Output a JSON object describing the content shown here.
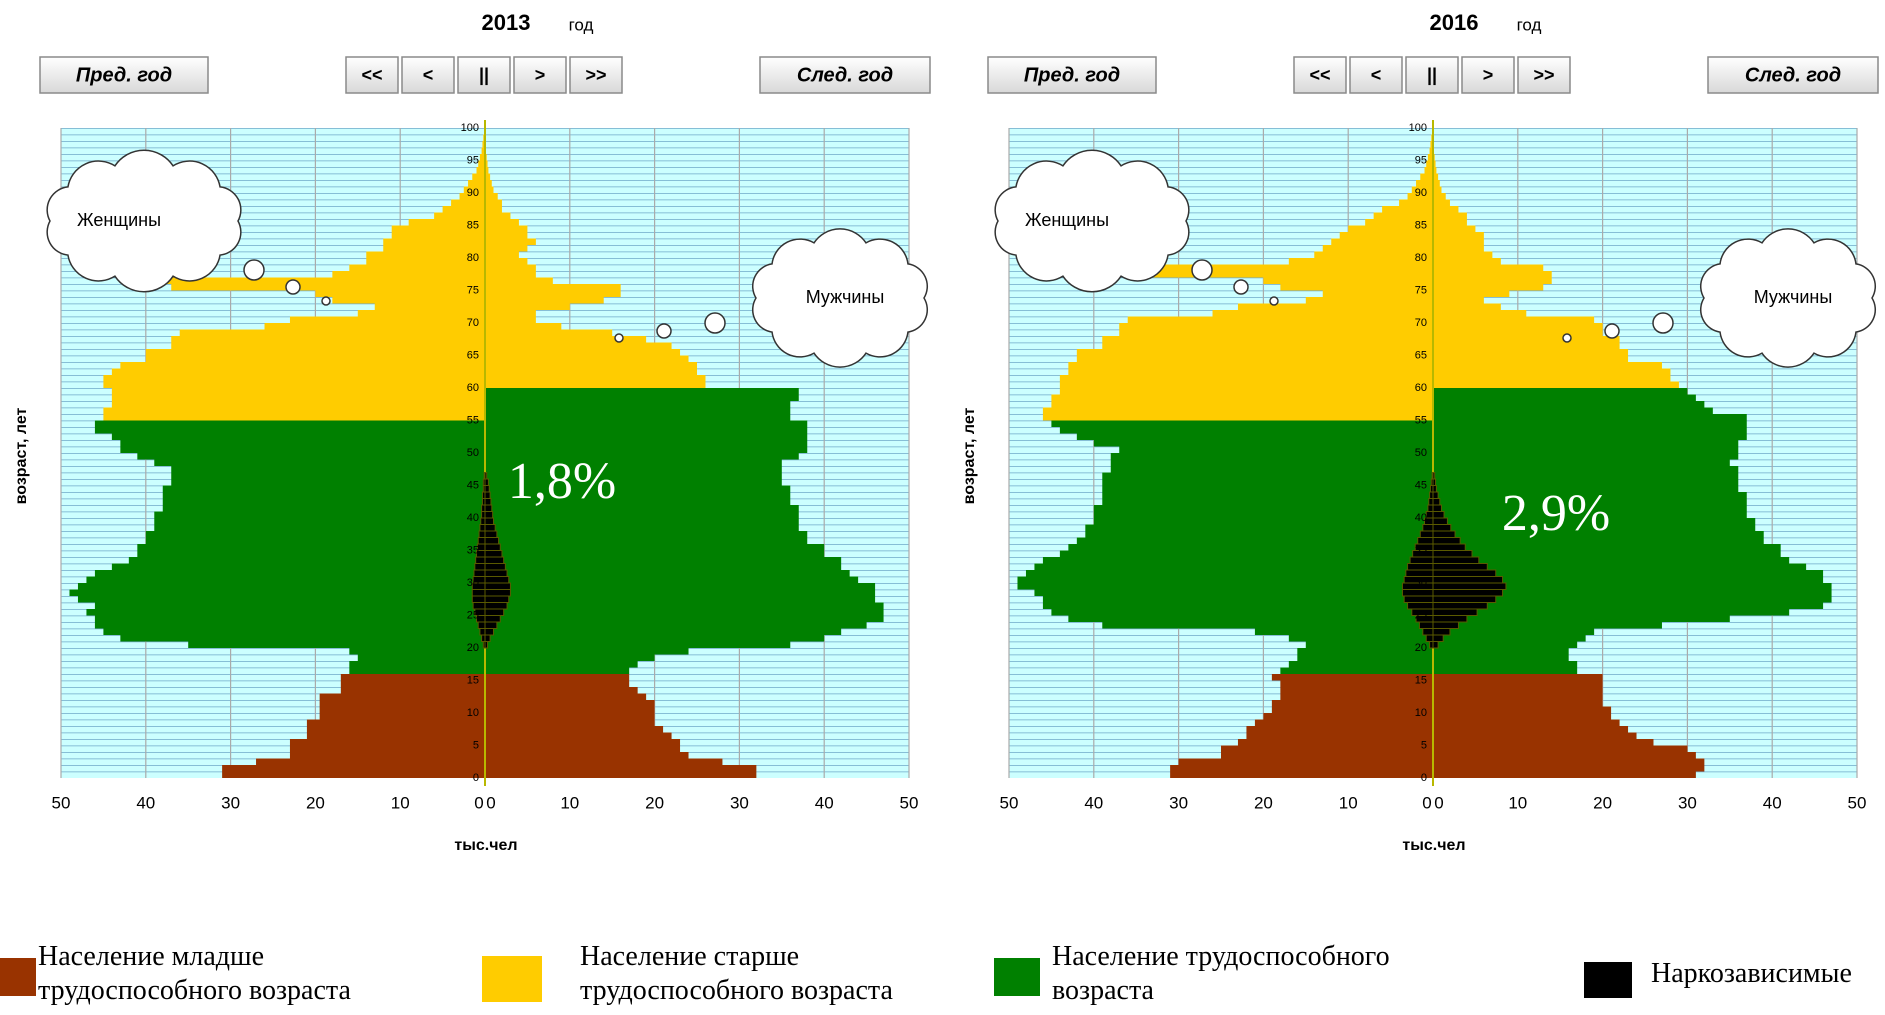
{
  "legend": [
    {
      "label": "Население младше трудоспособного возраста",
      "color": "#993300"
    },
    {
      "label": "Население старше трудоспособного возраста",
      "color": "#ffcc00"
    },
    {
      "label": "Население трудоспособного возраста",
      "color": "#008000"
    },
    {
      "label": "Наркозависимые",
      "color": "#000000"
    }
  ],
  "chart_data": [
    {
      "type": "pyramid",
      "title": "2013",
      "title_unit": "год",
      "buttons": {
        "prev": "Пред. год",
        "nav": [
          "<<",
          "<",
          "||",
          ">",
          ">>"
        ],
        "next": "След. год"
      },
      "ylabel": "возраст, лет",
      "xlabel": "тыс.чел",
      "xlim": [
        0,
        50
      ],
      "xticks": [
        0,
        10,
        20,
        30,
        40,
        50
      ],
      "ylim": [
        0,
        100
      ],
      "yticks": [
        0,
        5,
        10,
        15,
        20,
        25,
        30,
        35,
        40,
        45,
        50,
        55,
        60,
        65,
        70,
        75,
        80,
        85,
        90,
        95,
        100
      ],
      "series": [
        {
          "name": "Женщины",
          "side": "left",
          "bounds": [
            15,
            54
          ],
          "values": [
            31,
            31,
            27,
            23,
            23,
            23,
            21,
            21,
            21,
            19.5,
            19.5,
            19.5,
            19.5,
            17,
            17,
            17,
            16,
            16,
            15,
            16,
            35,
            43,
            45,
            46,
            46,
            47,
            46,
            48,
            49,
            48,
            47,
            46,
            44,
            42,
            41,
            41,
            40,
            40,
            39,
            39,
            39,
            38,
            38,
            38,
            38,
            37,
            37,
            37,
            39,
            41,
            43,
            43,
            44,
            46,
            46,
            45,
            45,
            44,
            44,
            44,
            45,
            45,
            44,
            43,
            40,
            40,
            37,
            37,
            36,
            26,
            23,
            15,
            13,
            18,
            20,
            37,
            38,
            18,
            16,
            14,
            14,
            12,
            12,
            11,
            11,
            9,
            6,
            5,
            4,
            3,
            2.5,
            2,
            1.5,
            1,
            0.8,
            0.6,
            0.4,
            0.3,
            0.2,
            0.1,
            0.1
          ]
        },
        {
          "name": "Мужчины",
          "side": "right",
          "bounds": [
            15,
            59
          ],
          "values": [
            32,
            32,
            28,
            24,
            23,
            23,
            22,
            21,
            20,
            20,
            20,
            20,
            19,
            18,
            17,
            17,
            17,
            18,
            20,
            24,
            36,
            40,
            42,
            45,
            47,
            47,
            47,
            46,
            46,
            46,
            44,
            43,
            42,
            42,
            40,
            40,
            38,
            38,
            37,
            37,
            37,
            37,
            36,
            36,
            36,
            35,
            35,
            35,
            35,
            37,
            38,
            38,
            38,
            38,
            38,
            36,
            36,
            36,
            37,
            37,
            26,
            26,
            25,
            25,
            24,
            23,
            22,
            19,
            15,
            9,
            6,
            6,
            10,
            14,
            16,
            16,
            8,
            6,
            6,
            5,
            4,
            5,
            6,
            5,
            5,
            4,
            3,
            2,
            2,
            1.5,
            1,
            0.8,
            0.6,
            0.4,
            0.3,
            0.2,
            0.1,
            0.1,
            0.1,
            0,
            0
          ]
        }
      ],
      "addicts": {
        "label": "1,8%",
        "ages": [
          20,
          21,
          22,
          23,
          24,
          25,
          26,
          27,
          28,
          29,
          30,
          31,
          32,
          33,
          34,
          35,
          36,
          37,
          38,
          39,
          40,
          41,
          42,
          43,
          44,
          45,
          46
        ],
        "values": [
          [
            0.2,
            0.4,
            0.6,
            0.8,
            1.0,
            1.2,
            1.4,
            1.5,
            1.5,
            1.5,
            1.4,
            1.3,
            1.2,
            1.1,
            1.0,
            0.9,
            0.8,
            0.7,
            0.6,
            0.5,
            0.4,
            0.4,
            0.3,
            0.3,
            0.2,
            0.2,
            0.1
          ],
          [
            0.3,
            0.6,
            1.0,
            1.4,
            1.8,
            2.2,
            2.6,
            2.8,
            3.0,
            3.0,
            2.8,
            2.6,
            2.4,
            2.2,
            2.0,
            1.8,
            1.6,
            1.4,
            1.2,
            1.0,
            0.9,
            0.8,
            0.7,
            0.6,
            0.5,
            0.4,
            0.2
          ]
        ]
      }
    },
    {
      "type": "pyramid",
      "title": "2016",
      "title_unit": "год",
      "buttons": {
        "prev": "Пред. год",
        "nav": [
          "<<",
          "<",
          "||",
          ">",
          ">>"
        ],
        "next": "След. год"
      },
      "ylabel": "возраст, лет",
      "xlabel": "тыс.чел",
      "xlim": [
        0,
        50
      ],
      "xticks": [
        0,
        10,
        20,
        30,
        40,
        50
      ],
      "ylim": [
        0,
        100
      ],
      "yticks": [
        0,
        5,
        10,
        15,
        20,
        25,
        30,
        35,
        40,
        45,
        50,
        55,
        60,
        65,
        70,
        75,
        80,
        85,
        90,
        95,
        100
      ],
      "series": [
        {
          "name": "Женщины",
          "side": "left",
          "bounds": [
            15,
            54
          ],
          "values": [
            31,
            31,
            30,
            25,
            25,
            23,
            22,
            22,
            21,
            20,
            19,
            19,
            18,
            18,
            18,
            19,
            18,
            17,
            16,
            16,
            15,
            17,
            21,
            39,
            43,
            45,
            46,
            46,
            47,
            49,
            49,
            48,
            47,
            46,
            44,
            43,
            42,
            41,
            41,
            40,
            40,
            40,
            39,
            39,
            39,
            39,
            39,
            38,
            38,
            38,
            37,
            40,
            42,
            44,
            45,
            46,
            46,
            45,
            45,
            44,
            44,
            44,
            43,
            43,
            42,
            42,
            39,
            39,
            37,
            37,
            36,
            26,
            23,
            15,
            13,
            18,
            20,
            37,
            33,
            17,
            14,
            13,
            12,
            11,
            10,
            8,
            7,
            6,
            4,
            3,
            2.5,
            2,
            1.5,
            1,
            0.8,
            0.6,
            0.4,
            0.3,
            0.2,
            0.1,
            0.1
          ]
        },
        {
          "name": "Мужчины",
          "side": "right",
          "bounds": [
            15,
            59
          ],
          "values": [
            31,
            32,
            32,
            31,
            30,
            26,
            24,
            23,
            22,
            21,
            21,
            20,
            20,
            20,
            20,
            20,
            17,
            17,
            16,
            16,
            17,
            18,
            19,
            27,
            35,
            42,
            46,
            47,
            47,
            47,
            46,
            46,
            44,
            42,
            41,
            41,
            39,
            39,
            38,
            38,
            37,
            37,
            37,
            37,
            36,
            36,
            36,
            36,
            35,
            36,
            36,
            36,
            37,
            37,
            37,
            37,
            33,
            32,
            31,
            30,
            29,
            28,
            28,
            27,
            23,
            23,
            22,
            22,
            20,
            20,
            19,
            11,
            8,
            6,
            9,
            13,
            14,
            14,
            13,
            8,
            7,
            6,
            6,
            6,
            5,
            4,
            4,
            3,
            2,
            1.5,
            1,
            0.8,
            0.6,
            0.4,
            0.3,
            0.2,
            0.1,
            0.1,
            0.1,
            0,
            0
          ]
        }
      ],
      "addicts": {
        "label": "2,9%",
        "ages": [
          20,
          21,
          22,
          23,
          24,
          25,
          26,
          27,
          28,
          29,
          30,
          31,
          32,
          33,
          34,
          35,
          36,
          37,
          38,
          39,
          40,
          41,
          42,
          43,
          44,
          45,
          46
        ],
        "values": [
          [
            0.4,
            0.8,
            1.2,
            1.6,
            2.0,
            2.5,
            3.0,
            3.4,
            3.6,
            3.6,
            3.4,
            3.2,
            3.0,
            2.7,
            2.4,
            2.1,
            1.8,
            1.5,
            1.2,
            1.0,
            0.8,
            0.6,
            0.5,
            0.4,
            0.3,
            0.2,
            0.1
          ],
          [
            0.6,
            1.2,
            2.0,
            3.0,
            4.0,
            5.2,
            6.4,
            7.4,
            8.2,
            8.6,
            8.2,
            7.4,
            6.4,
            5.4,
            4.6,
            3.8,
            3.2,
            2.6,
            2.1,
            1.7,
            1.3,
            1.0,
            0.8,
            0.6,
            0.4,
            0.3,
            0.2
          ]
        ]
      }
    }
  ]
}
